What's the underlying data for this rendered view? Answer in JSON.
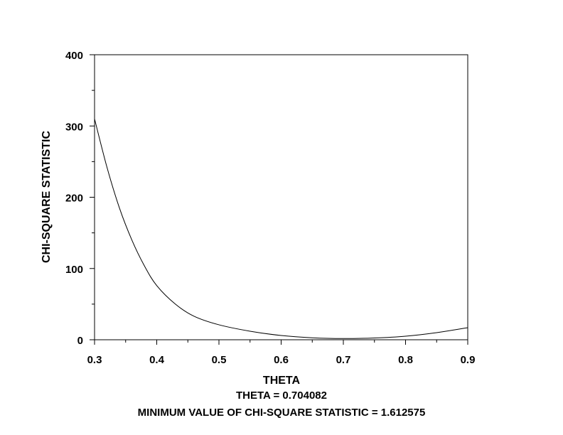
{
  "chart_data": {
    "type": "line",
    "title": "",
    "xlabel": "THETA",
    "ylabel": "CHI-SQUARE STATISTIC",
    "xlim": [
      0.3,
      0.9
    ],
    "ylim": [
      0,
      400
    ],
    "x_ticks": [
      "0.3",
      "0.4",
      "0.5",
      "0.6",
      "0.7",
      "0.8",
      "0.9"
    ],
    "y_ticks": [
      "0",
      "100",
      "200",
      "300",
      "400"
    ],
    "grid": false,
    "series": [
      {
        "x": [
          0.3,
          0.32,
          0.34,
          0.36,
          0.38,
          0.4,
          0.43,
          0.46,
          0.5,
          0.55,
          0.6,
          0.65,
          0.7,
          0.75,
          0.8,
          0.85,
          0.9
        ],
        "y": [
          310,
          242,
          185,
          140,
          104,
          76,
          50,
          33,
          21,
          12,
          6,
          2.8,
          1.7,
          2.5,
          5,
          10,
          17
        ]
      }
    ],
    "annotations": [
      "THETA = 0.704082",
      "MINIMUM VALUE OF CHI-SQUARE STATISTIC = 1.612575"
    ],
    "colors": {
      "line": "#000000",
      "axis": "#000000"
    }
  }
}
